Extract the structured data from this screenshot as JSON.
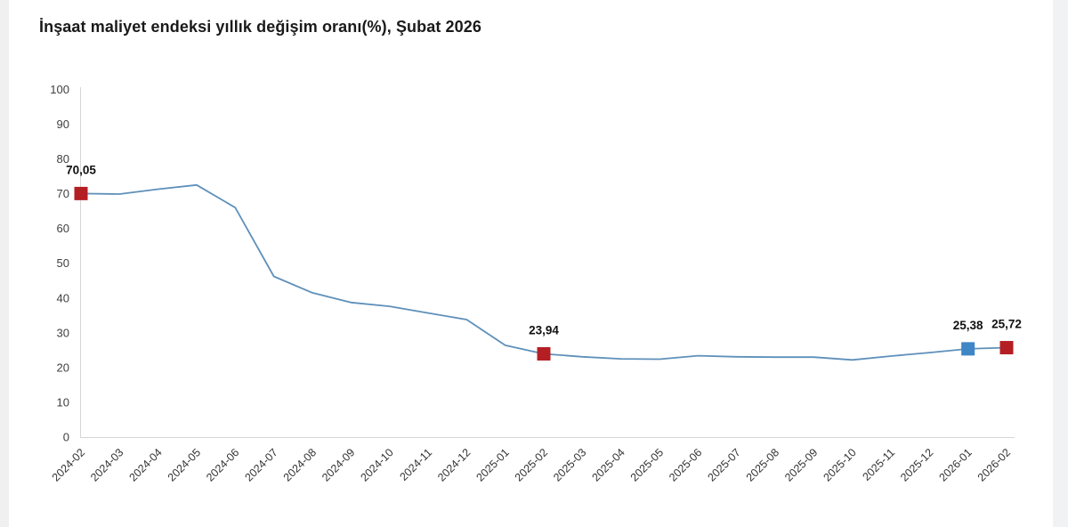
{
  "page": {
    "background": "#ffffff",
    "left_margin_color": "#f0f0f0",
    "scrollbar_track_color": "#f1f2f3"
  },
  "chart_data": {
    "type": "line",
    "title": "İnşaat maliyet endeksi yıllık değişim oranı(%), Şubat 2026",
    "x": [
      "2024-02",
      "2024-03",
      "2024-04",
      "2024-05",
      "2024-06",
      "2024-07",
      "2024-08",
      "2024-09",
      "2024-10",
      "2024-11",
      "2024-12",
      "2025-01",
      "2025-02",
      "2025-03",
      "2025-04",
      "2025-05",
      "2025-06",
      "2025-07",
      "2025-08",
      "2025-09",
      "2025-10",
      "2025-11",
      "2025-12",
      "2026-01",
      "2026-02"
    ],
    "values": [
      70.05,
      69.9,
      71.3,
      72.5,
      66.0,
      46.2,
      41.5,
      38.7,
      37.6,
      35.7,
      33.8,
      26.4,
      23.94,
      23.1,
      22.5,
      22.4,
      23.4,
      23.1,
      23.0,
      23.0,
      22.2,
      23.3,
      24.3,
      25.38,
      25.72
    ],
    "labeled_points": [
      {
        "index": 0,
        "x": "2024-02",
        "value": 70.05,
        "label": "70,05",
        "marker_color": "#b41f24"
      },
      {
        "index": 12,
        "x": "2025-02",
        "value": 23.94,
        "label": "23,94",
        "marker_color": "#b41f24"
      },
      {
        "index": 23,
        "x": "2026-01",
        "value": 25.38,
        "label": "25,38",
        "marker_color": "#3e86c6"
      },
      {
        "index": 24,
        "x": "2026-02",
        "value": 25.72,
        "label": "25,72",
        "marker_color": "#b41f24"
      }
    ],
    "y_ticks": [
      0,
      10,
      20,
      30,
      40,
      50,
      60,
      70,
      80,
      90,
      100
    ],
    "ylim": [
      0,
      100
    ],
    "xlabel": "",
    "ylabel": "",
    "grid": false,
    "legend_position": "none",
    "line_color": "#5e90ba",
    "axis_color": "#d6d6d6",
    "tick_label_color": "#404040",
    "x_tick_rotation_deg": -45,
    "decimal_separator": ","
  }
}
